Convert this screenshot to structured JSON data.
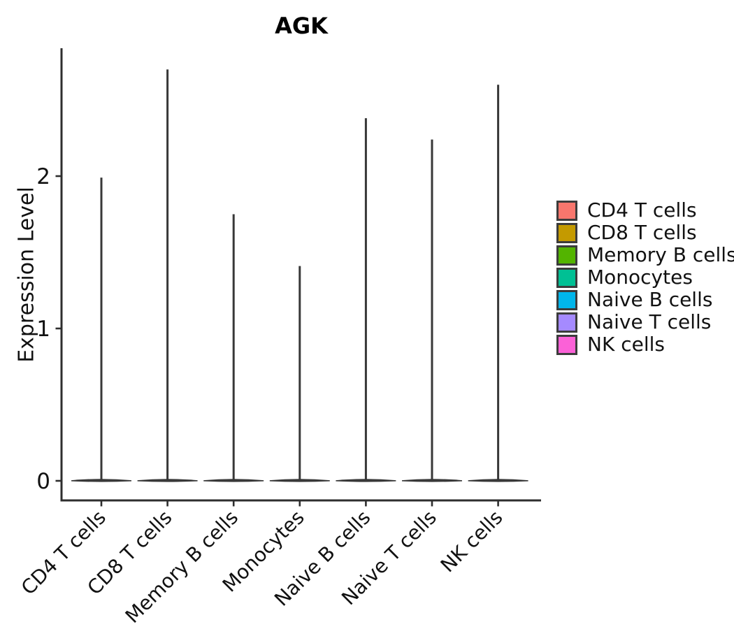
{
  "chart_data": {
    "type": "violin",
    "title": "AGK",
    "xlabel": "",
    "ylabel": "Expression Level",
    "y_ticks": [
      0,
      1,
      2
    ],
    "ylim": [
      -0.13,
      2.85
    ],
    "grid": false,
    "legend_position": "right",
    "categories": [
      "CD4 T cells",
      "CD8 T cells",
      "Memory B cells",
      "Monocytes",
      "Naive B cells",
      "Naive T cells",
      "NK cells"
    ],
    "groups": [
      {
        "label": "CD4 T cells",
        "color": "#F8766D",
        "base_value": 0,
        "max_value": 1.99
      },
      {
        "label": "CD8 T cells",
        "color": "#C49A00",
        "base_value": 0,
        "max_value": 2.7
      },
      {
        "label": "Memory B cells",
        "color": "#53B400",
        "base_value": 0,
        "max_value": 1.75
      },
      {
        "label": "Monocytes",
        "color": "#00C094",
        "base_value": 0,
        "max_value": 1.41
      },
      {
        "label": "Naive B cells",
        "color": "#00B6EB",
        "base_value": 0,
        "max_value": 2.38
      },
      {
        "label": "Naive T cells",
        "color": "#A58AFF",
        "base_value": 0,
        "max_value": 2.24
      },
      {
        "label": "NK cells",
        "color": "#FB61D7",
        "base_value": 0,
        "max_value": 2.6
      }
    ],
    "violin_outline_color": "#383838",
    "axis_color": "#2e2e2e"
  }
}
